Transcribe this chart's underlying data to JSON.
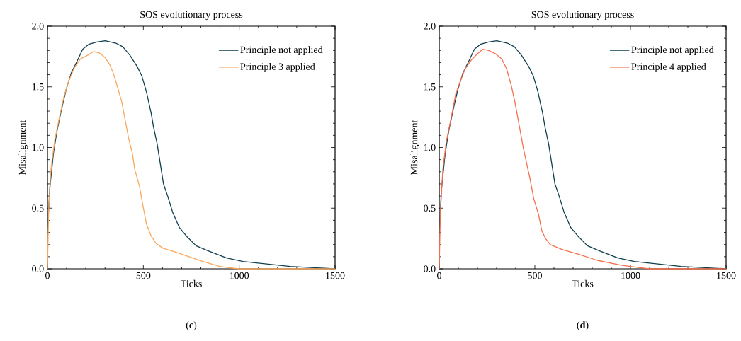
{
  "chart_data": [
    {
      "type": "line",
      "title": "SOS evolutionary process",
      "xlabel": "Ticks",
      "ylabel": "Misalignment",
      "annotations": [
        "(**c**)"
      ],
      "xlim": [
        0,
        1500
      ],
      "ylim": [
        0,
        2.0
      ],
      "xticks": [
        0,
        500,
        1000,
        1500
      ],
      "yticks": [
        {
          "value": 0,
          "label": "0.0"
        },
        {
          "value": 0.5,
          "label": "0.5"
        },
        {
          "value": 1,
          "label": "1.0"
        },
        {
          "value": 1.5,
          "label": "1.5"
        },
        {
          "value": 2,
          "label": "2.0"
        }
      ],
      "legend": "top right",
      "marker": "none",
      "line_style": "solid",
      "series": [
        {
          "name": "Principle not applied",
          "color": "#0f3f4f",
          "x": [
            0,
            12,
            31,
            49,
            74,
            98,
            123,
            154,
            184,
            215,
            258,
            301,
            357,
            393,
            430,
            467,
            492,
            516,
            541,
            553,
            572,
            590,
            605,
            627,
            652,
            688,
            725,
            775,
            836,
            934,
            1020,
            1143,
            1266,
            1389,
            1500
          ],
          "values": [
            0.3,
            0.66,
            0.95,
            1.13,
            1.32,
            1.48,
            1.61,
            1.71,
            1.81,
            1.85,
            1.87,
            1.88,
            1.86,
            1.83,
            1.76,
            1.67,
            1.59,
            1.46,
            1.28,
            1.17,
            1.03,
            0.85,
            0.7,
            0.6,
            0.47,
            0.34,
            0.27,
            0.19,
            0.15,
            0.09,
            0.06,
            0.04,
            0.02,
            0.01,
            0
          ]
        },
        {
          "name": "Principle 3 applied",
          "color": "#f9a85e",
          "x": [
            0,
            6,
            18,
            37,
            61,
            86,
            111,
            141,
            172,
            209,
            240,
            270,
            301,
            326,
            344,
            363,
            387,
            406,
            424,
            443,
            455,
            480,
            498,
            516,
            541,
            566,
            602,
            664,
            738,
            811,
            898,
            996,
            1082,
            1500
          ],
          "values": [
            0,
            0.47,
            0.82,
            1.05,
            1.24,
            1.42,
            1.55,
            1.66,
            1.73,
            1.76,
            1.79,
            1.78,
            1.74,
            1.68,
            1.61,
            1.51,
            1.38,
            1.22,
            1.07,
            0.95,
            0.82,
            0.68,
            0.52,
            0.37,
            0.27,
            0.21,
            0.17,
            0.14,
            0.1,
            0.06,
            0.02,
            0.0,
            0,
            0
          ]
        }
      ]
    },
    {
      "type": "line",
      "title": "SOS evolutionary process",
      "xlabel": "Ticks",
      "ylabel": "Misalignment",
      "annotations": [
        "(**d**)"
      ],
      "xlim": [
        0,
        1500
      ],
      "ylim": [
        0,
        2.0
      ],
      "xticks": [
        0,
        500,
        1000,
        1500
      ],
      "yticks": [
        {
          "value": 0,
          "label": "0.0"
        },
        {
          "value": 0.5,
          "label": "0.5"
        },
        {
          "value": 1,
          "label": "1.0"
        },
        {
          "value": 1.5,
          "label": "1.5"
        },
        {
          "value": 2,
          "label": "2.0"
        }
      ],
      "legend": "top right",
      "marker": "none",
      "line_style": "solid",
      "series": [
        {
          "name": "Principle not applied",
          "color": "#0f3f4f",
          "x": [
            0,
            12,
            31,
            49,
            74,
            98,
            123,
            154,
            184,
            215,
            258,
            301,
            357,
            393,
            430,
            467,
            492,
            516,
            541,
            553,
            572,
            590,
            605,
            627,
            652,
            688,
            725,
            775,
            836,
            934,
            1020,
            1143,
            1266,
            1389,
            1500
          ],
          "values": [
            0.3,
            0.66,
            0.95,
            1.13,
            1.32,
            1.48,
            1.61,
            1.71,
            1.81,
            1.85,
            1.87,
            1.88,
            1.86,
            1.83,
            1.76,
            1.67,
            1.59,
            1.46,
            1.28,
            1.17,
            1.03,
            0.85,
            0.7,
            0.6,
            0.47,
            0.34,
            0.27,
            0.19,
            0.15,
            0.09,
            0.06,
            0.04,
            0.02,
            0.01,
            0
          ]
        },
        {
          "name": "Principle 4 applied",
          "color": "#f6704f",
          "x": [
            0,
            6,
            19,
            37,
            62,
            86,
            111,
            136,
            167,
            198,
            228,
            259,
            296,
            327,
            352,
            377,
            395,
            414,
            438,
            457,
            475,
            494,
            519,
            537,
            556,
            580,
            642,
            728,
            827,
            951,
            1049,
            1099,
            1500
          ],
          "values": [
            0,
            0.47,
            0.82,
            1.05,
            1.24,
            1.44,
            1.55,
            1.65,
            1.72,
            1.77,
            1.81,
            1.8,
            1.77,
            1.73,
            1.65,
            1.51,
            1.38,
            1.22,
            1.01,
            0.87,
            0.74,
            0.58,
            0.45,
            0.31,
            0.25,
            0.2,
            0.16,
            0.12,
            0.07,
            0.03,
            0.01,
            0,
            0
          ]
        }
      ]
    }
  ]
}
